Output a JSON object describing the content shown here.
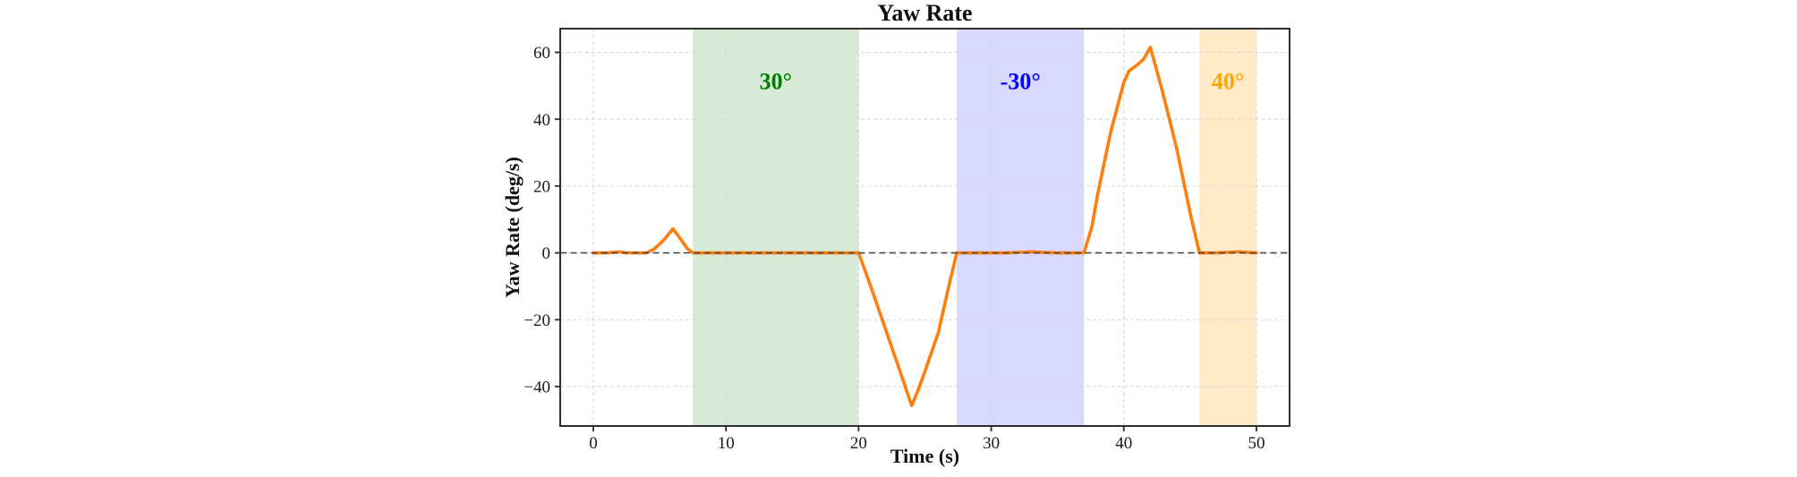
{
  "chart_data": {
    "type": "line",
    "title": "Yaw Rate",
    "xlabel": "Time (s)",
    "ylabel": "Yaw Rate (deg/s)",
    "xlim": [
      -2.5,
      52.5
    ],
    "ylim": [
      -51.8,
      67.1
    ],
    "x_ticks": [
      0,
      10,
      20,
      30,
      40,
      50
    ],
    "y_ticks": [
      -40,
      -20,
      0,
      20,
      40,
      60
    ],
    "grid": true,
    "zero_reference_line": 0,
    "colors": {
      "line": "#ff7f0e",
      "grid": "#d8d8d8",
      "zero_line": "#4a4a4a",
      "spine": "#2e2e2e",
      "tick_text": "#1a1a1a",
      "title_text": "#111111"
    },
    "series": [
      {
        "name": "yaw_rate",
        "color": "#ff7f0e",
        "points": [
          [
            0,
            0
          ],
          [
            1,
            0
          ],
          [
            2,
            0.3
          ],
          [
            2.5,
            0
          ],
          [
            4,
            0
          ],
          [
            4.6,
            1.2
          ],
          [
            5.3,
            3.8
          ],
          [
            6,
            7.2
          ],
          [
            6.6,
            4.0
          ],
          [
            7.1,
            1.2
          ],
          [
            7.5,
            0
          ],
          [
            10,
            0
          ],
          [
            14,
            0
          ],
          [
            18,
            0
          ],
          [
            20,
            0
          ],
          [
            21,
            -11
          ],
          [
            22,
            -22.5
          ],
          [
            23,
            -34
          ],
          [
            24,
            -45.7
          ],
          [
            24.5,
            -41
          ],
          [
            25,
            -35.5
          ],
          [
            26,
            -24
          ],
          [
            26.8,
            -10
          ],
          [
            27.4,
            0
          ],
          [
            29,
            0
          ],
          [
            31,
            0
          ],
          [
            33,
            0.3
          ],
          [
            35,
            0
          ],
          [
            37,
            0
          ],
          [
            37.6,
            8
          ],
          [
            38,
            17
          ],
          [
            39,
            36
          ],
          [
            40,
            51
          ],
          [
            40.4,
            54.5
          ],
          [
            41,
            56.2
          ],
          [
            41.5,
            58
          ],
          [
            42,
            61.5
          ],
          [
            42.8,
            50
          ],
          [
            43.5,
            39
          ],
          [
            44,
            31
          ],
          [
            45,
            12
          ],
          [
            45.7,
            0
          ],
          [
            47,
            0
          ],
          [
            48.6,
            0.3
          ],
          [
            50,
            0
          ]
        ]
      }
    ],
    "regions": [
      {
        "label": "30°",
        "x_start": 7.5,
        "x_end": 20,
        "fill": "rgba(34,139,34,0.18)",
        "text_color": "#008000",
        "label_y": 51.5
      },
      {
        "label": "-30°",
        "x_start": 27.4,
        "x_end": 37,
        "fill": "rgba(0,0,255,0.15)",
        "text_color": "#0000ff",
        "label_y": 51.5
      },
      {
        "label": "40°",
        "x_start": 45.7,
        "x_end": 50,
        "fill": "rgba(255,165,0,0.22)",
        "text_color": "#ffa500",
        "label_y": 51.5
      }
    ]
  }
}
